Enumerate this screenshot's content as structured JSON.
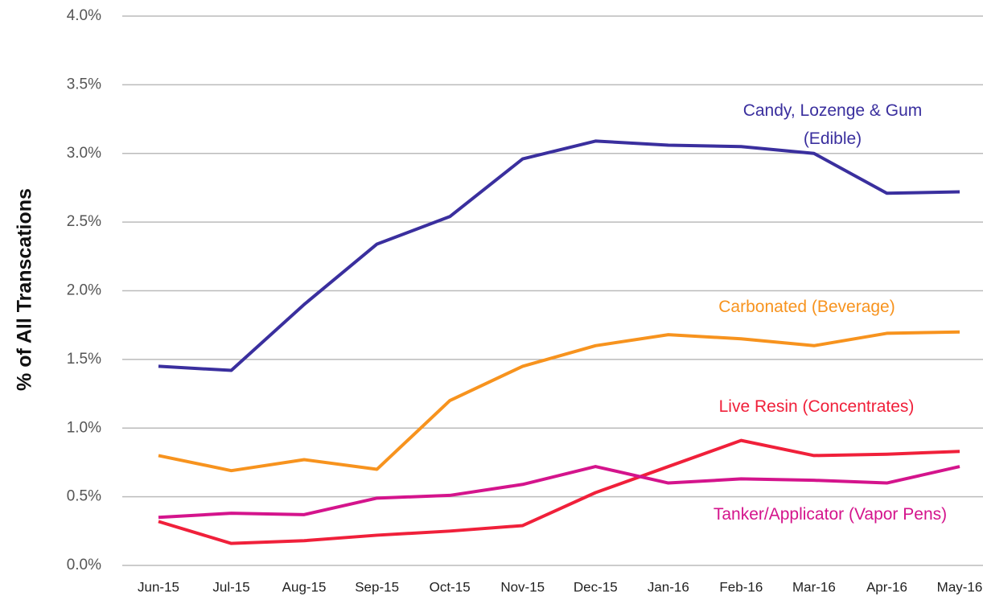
{
  "chart_data": {
    "type": "line",
    "y_axis_label": "% of All Transcations",
    "categories": [
      "Jun-15",
      "Jul-15",
      "Aug-15",
      "Sep-15",
      "Oct-15",
      "Nov-15",
      "Dec-15",
      "Jan-16",
      "Feb-16",
      "Mar-16",
      "Apr-16",
      "May-16"
    ],
    "series": [
      {
        "name": "Candy, Lozenge & Gum (Edible)",
        "color": "#3a2f9e",
        "values": [
          1.45,
          1.42,
          1.9,
          2.34,
          2.54,
          2.96,
          3.09,
          3.06,
          3.05,
          3.0,
          2.71,
          2.72
        ]
      },
      {
        "name": "Carbonated (Beverage)",
        "color": "#f7931e",
        "values": [
          0.8,
          0.69,
          0.77,
          0.7,
          1.2,
          1.45,
          1.6,
          1.68,
          1.65,
          1.6,
          1.69,
          1.7
        ]
      },
      {
        "name": "Live Resin (Concentrates)",
        "color": "#f0203a",
        "values": [
          0.32,
          0.16,
          0.18,
          0.22,
          0.25,
          0.29,
          0.53,
          0.72,
          0.91,
          0.8,
          0.81,
          0.83
        ]
      },
      {
        "name": "Tanker/Applicator (Vapor Pens)",
        "color": "#d4148c",
        "values": [
          0.35,
          0.38,
          0.37,
          0.49,
          0.51,
          0.59,
          0.72,
          0.6,
          0.63,
          0.62,
          0.6,
          0.72
        ]
      }
    ],
    "ylim": [
      0,
      4
    ],
    "yticks": [
      {
        "value": 0,
        "label": "0.0%"
      },
      {
        "value": 0.5,
        "label": "0.5%"
      },
      {
        "value": 1,
        "label": "1.0%"
      },
      {
        "value": 1.5,
        "label": "1.5%"
      },
      {
        "value": 2,
        "label": "2.0%"
      },
      {
        "value": 2.5,
        "label": "2.5%"
      },
      {
        "value": 3,
        "label": "3.0%"
      },
      {
        "value": 3.5,
        "label": "3.5%"
      },
      {
        "value": 4,
        "label": "4.0%"
      }
    ],
    "grid": true
  }
}
